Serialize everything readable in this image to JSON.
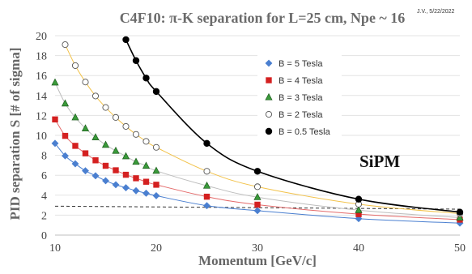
{
  "chart_data": {
    "type": "line",
    "title": "C4F10: π-K separation for L=25 cm, Npe ~ 16",
    "note": "J.V., 5/22/2022",
    "xlabel": "Momentum [GeV/c]",
    "ylabel": "PID separation S [# of sigma]",
    "xlim": [
      10,
      50
    ],
    "ylim": [
      0,
      20
    ],
    "xticks": [
      "10",
      "20",
      "30",
      "40",
      "50"
    ],
    "yticks": [
      "0",
      "2",
      "4",
      "6",
      "8",
      "10",
      "12",
      "14",
      "16",
      "18",
      "20"
    ],
    "grid": "horizontal",
    "legend_position": "right-center",
    "annotation": "SiPM",
    "reference_line": {
      "y_start": 2.9,
      "y_end": 2.6,
      "style": "dashed",
      "color": "#333333"
    },
    "series": [
      {
        "name": "B = 5 Tesla",
        "color": "#4a7fd0",
        "line_color": "#4a7fd0",
        "marker": "diamond",
        "marker_fill": "#4a7fd0",
        "points": [
          [
            10,
            9.2
          ],
          [
            11,
            7.95
          ],
          [
            12,
            7.15
          ],
          [
            13,
            6.45
          ],
          [
            14,
            5.95
          ],
          [
            15,
            5.45
          ],
          [
            16,
            5.05
          ],
          [
            17,
            4.75
          ],
          [
            18,
            4.45
          ],
          [
            19,
            4.2
          ],
          [
            20,
            3.95
          ],
          [
            25,
            2.95
          ],
          [
            30,
            2.45
          ],
          [
            40,
            1.65
          ],
          [
            50,
            1.2
          ]
        ]
      },
      {
        "name": "B = 4 Tesla",
        "color": "#d42020",
        "line_color": "#e46a6a",
        "marker": "square",
        "marker_fill": "#d42020",
        "points": [
          [
            10,
            11.6
          ],
          [
            11,
            9.95
          ],
          [
            12,
            8.95
          ],
          [
            13,
            8.2
          ],
          [
            14,
            7.5
          ],
          [
            15,
            6.95
          ],
          [
            16,
            6.5
          ],
          [
            17,
            6.05
          ],
          [
            18,
            5.7
          ],
          [
            19,
            5.35
          ],
          [
            20,
            5.05
          ],
          [
            25,
            3.85
          ],
          [
            30,
            3.05
          ],
          [
            40,
            2.1
          ],
          [
            50,
            1.55
          ]
        ]
      },
      {
        "name": "B = 3 Tesla",
        "color": "#3a9a3a",
        "line_color": "#bdbdbd",
        "marker": "triangle",
        "marker_fill": "#3a9a3a",
        "points": [
          [
            10,
            15.3
          ],
          [
            11,
            13.2
          ],
          [
            12,
            11.8
          ],
          [
            13,
            10.7
          ],
          [
            14,
            9.8
          ],
          [
            15,
            9.05
          ],
          [
            16,
            8.45
          ],
          [
            17,
            7.9
          ],
          [
            18,
            7.35
          ],
          [
            19,
            6.95
          ],
          [
            20,
            6.45
          ],
          [
            25,
            4.95
          ],
          [
            30,
            3.8
          ],
          [
            40,
            2.5
          ],
          [
            50,
            1.75
          ]
        ]
      },
      {
        "name": "B = 2 Tesla",
        "color": "#e8a33a",
        "line_color": "#f2c24a",
        "marker": "circle-open",
        "marker_fill": "#ffffff",
        "points": [
          [
            11,
            19.1
          ],
          [
            12,
            17.0
          ],
          [
            13,
            15.35
          ],
          [
            14,
            13.95
          ],
          [
            15,
            12.8
          ],
          [
            16,
            11.8
          ],
          [
            17,
            10.9
          ],
          [
            18,
            10.1
          ],
          [
            19,
            9.4
          ],
          [
            20,
            8.8
          ],
          [
            25,
            6.4
          ],
          [
            30,
            4.85
          ],
          [
            40,
            3.1
          ],
          [
            50,
            2.15
          ]
        ]
      },
      {
        "name": "B = 0.5 Tesla",
        "color": "#000000",
        "line_color": "#000000",
        "marker": "circle",
        "marker_fill": "#000000",
        "points": [
          [
            17,
            19.6
          ],
          [
            18,
            17.5
          ],
          [
            19,
            15.75
          ],
          [
            20,
            14.4
          ],
          [
            25,
            9.2
          ],
          [
            30,
            6.4
          ],
          [
            40,
            3.6
          ],
          [
            50,
            2.3
          ]
        ]
      }
    ]
  }
}
